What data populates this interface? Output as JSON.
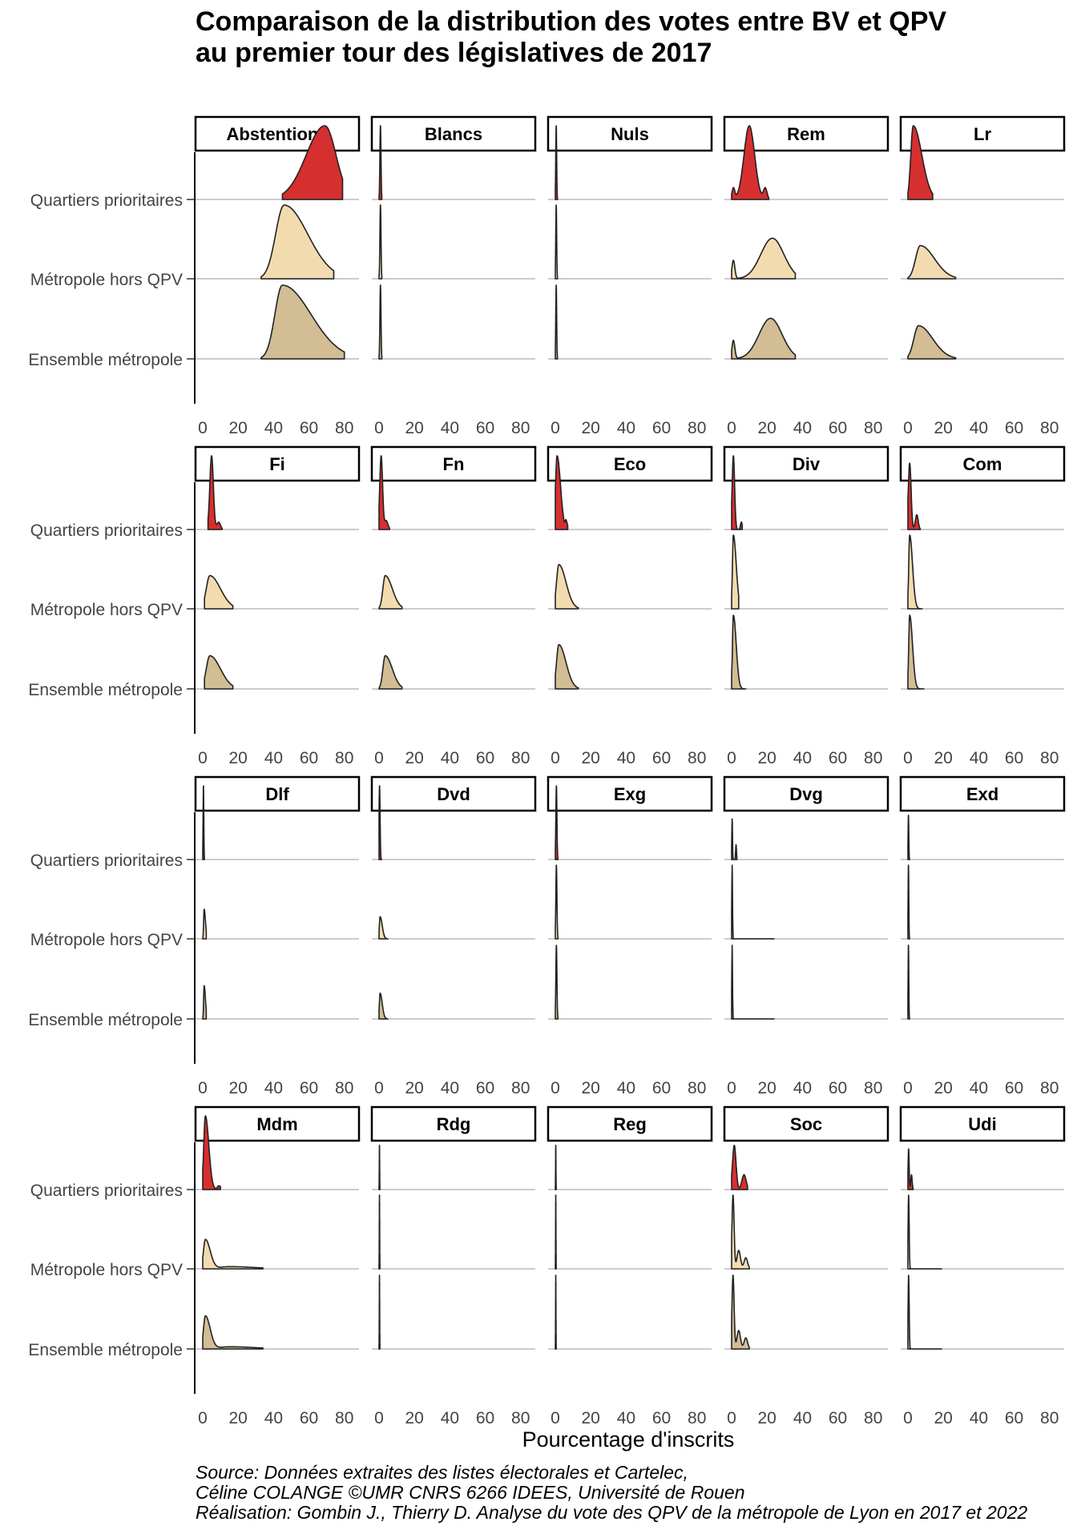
{
  "chart_data": {
    "type": "ridgeline",
    "title_lines": [
      "Comparaison de la distribution des votes entre BV et QPV",
      "au premier tour des législatives de 2017"
    ],
    "xlabel": "Pourcentage d'inscrits",
    "x_ticks": [
      "0",
      "20",
      "40",
      "60",
      "80"
    ],
    "xlim": [
      0,
      85
    ],
    "y_categories": [
      "Quartiers prioritaires",
      "Métropole hors QPV",
      "Ensemble métropole"
    ],
    "colors": {
      "Quartiers prioritaires": "#d62f2f",
      "Métropole hors QPV": "#f2dcaf",
      "Ensemble métropole": "#d2bd94",
      "gridline": "#cccccc",
      "strip_border": "#000000"
    },
    "panels": [
      {
        "name": "Abstentions",
        "series": [
          {
            "range": [
              45,
              79
            ],
            "peaks": [
              [
                69,
                7.5,
                1.0
              ]
            ],
            "skew": -0.4
          },
          {
            "range": [
              33,
              74
            ],
            "peaks": [
              [
                46,
                7,
                1.0
              ]
            ],
            "skew": 0.9
          },
          {
            "range": [
              33,
              80
            ],
            "peaks": [
              [
                45,
                7,
                1.0
              ]
            ],
            "skew": 1.3
          }
        ]
      },
      {
        "name": "Blancs",
        "series": [
          {
            "range": [
              0,
              1.6
            ],
            "peaks": [
              [
                0.8,
                0.3,
                1.0
              ]
            ],
            "skew": 0
          },
          {
            "range": [
              0,
              1.6
            ],
            "peaks": [
              [
                0.8,
                0.3,
                1.0
              ]
            ],
            "skew": 0
          },
          {
            "range": [
              0,
              1.6
            ],
            "peaks": [
              [
                0.8,
                0.3,
                1.0
              ]
            ],
            "skew": 0
          }
        ]
      },
      {
        "name": "Nuls",
        "series": [
          {
            "range": [
              0,
              1.2
            ],
            "peaks": [
              [
                0.5,
                0.25,
                1.0
              ]
            ],
            "skew": 0
          },
          {
            "range": [
              0,
              1.2
            ],
            "peaks": [
              [
                0.5,
                0.25,
                1.0
              ]
            ],
            "skew": 0
          },
          {
            "range": [
              0,
              1.2
            ],
            "peaks": [
              [
                0.5,
                0.25,
                1.0
              ]
            ],
            "skew": 0
          }
        ]
      },
      {
        "name": "Rem",
        "series": [
          {
            "range": [
              0,
              21
            ],
            "peaks": [
              [
                10,
                3,
                1.0
              ],
              [
                1,
                0.8,
                0.15
              ],
              [
                19,
                1,
                0.15
              ]
            ],
            "skew": 0
          },
          {
            "range": [
              0,
              36
            ],
            "peaks": [
              [
                23,
                6.5,
                0.55
              ],
              [
                1,
                0.8,
                0.25
              ]
            ],
            "skew": 0
          },
          {
            "range": [
              0,
              36
            ],
            "peaks": [
              [
                22,
                6.5,
                0.55
              ],
              [
                1,
                0.8,
                0.25
              ]
            ],
            "skew": 0
          }
        ]
      },
      {
        "name": "Lr",
        "series": [
          {
            "range": [
              0,
              14
            ],
            "peaks": [
              [
                3,
                2.2,
                1.0
              ]
            ],
            "skew": 1.2
          },
          {
            "range": [
              0,
              27
            ],
            "peaks": [
              [
                7,
                4,
                0.45
              ]
            ],
            "skew": 1.0
          },
          {
            "range": [
              0,
              27
            ],
            "peaks": [
              [
                6,
                4,
                0.45
              ]
            ],
            "skew": 1.0
          }
        ]
      },
      {
        "name": "Fi",
        "series": [
          {
            "range": [
              3,
              11
            ],
            "peaks": [
              [
                5,
                1,
                1.0
              ],
              [
                9,
                1,
                0.1
              ]
            ],
            "skew": 0
          },
          {
            "range": [
              1,
              17
            ],
            "peaks": [
              [
                4,
                3,
                0.45
              ]
            ],
            "skew": 1.0
          },
          {
            "range": [
              1,
              17
            ],
            "peaks": [
              [
                4,
                3,
                0.45
              ]
            ],
            "skew": 1.0
          }
        ]
      },
      {
        "name": "Fn",
        "series": [
          {
            "range": [
              0,
              6
            ],
            "peaks": [
              [
                1.2,
                0.8,
                1.0
              ],
              [
                4,
                1,
                0.12
              ]
            ],
            "skew": 0
          },
          {
            "range": [
              0,
              13
            ],
            "peaks": [
              [
                3.5,
                2,
                0.45
              ]
            ],
            "skew": 1.0
          },
          {
            "range": [
              0,
              13
            ],
            "peaks": [
              [
                3.5,
                2,
                0.45
              ]
            ],
            "skew": 1.0
          }
        ]
      },
      {
        "name": "Eco",
        "series": [
          {
            "range": [
              0,
              7
            ],
            "peaks": [
              [
                1,
                1.2,
                1.0
              ],
              [
                6,
                0.5,
                0.1
              ]
            ],
            "skew": 0.6
          },
          {
            "range": [
              0,
              13
            ],
            "peaks": [
              [
                2,
                2,
                0.6
              ]
            ],
            "skew": 1.0
          },
          {
            "range": [
              0,
              13
            ],
            "peaks": [
              [
                2,
                2,
                0.6
              ]
            ],
            "skew": 1.0
          }
        ]
      },
      {
        "name": "Div",
        "series": [
          {
            "range": [
              0,
              6
            ],
            "peaks": [
              [
                1,
                0.7,
                1.0
              ],
              [
                5.5,
                0.5,
                0.1
              ]
            ],
            "skew": 0
          },
          {
            "range": [
              0,
              4
            ],
            "peaks": [
              [
                1,
                0.8,
                1.0
              ]
            ],
            "skew": 1.0
          },
          {
            "range": [
              0,
              8
            ],
            "peaks": [
              [
                1,
                0.8,
                1.0
              ]
            ],
            "skew": 1.0
          }
        ]
      },
      {
        "name": "Com",
        "series": [
          {
            "range": [
              0,
              7
            ],
            "peaks": [
              [
                1,
                0.8,
                0.9
              ],
              [
                5,
                0.8,
                0.2
              ]
            ],
            "skew": 0
          },
          {
            "range": [
              0,
              8
            ],
            "peaks": [
              [
                1,
                0.8,
                1.0
              ]
            ],
            "skew": 1.0
          },
          {
            "range": [
              0,
              9
            ],
            "peaks": [
              [
                1,
                0.8,
                1.0
              ]
            ],
            "skew": 1.0
          }
        ]
      },
      {
        "name": "Dlf",
        "series": [
          {
            "range": [
              0,
              1
            ],
            "peaks": [
              [
                0.4,
                0.2,
                1.0
              ]
            ],
            "skew": 0
          },
          {
            "range": [
              0,
              2
            ],
            "peaks": [
              [
                0.8,
                0.4,
                0.4
              ]
            ],
            "skew": 0.8
          },
          {
            "range": [
              0,
              2
            ],
            "peaks": [
              [
                0.8,
                0.4,
                0.45
              ]
            ],
            "skew": 0.8
          }
        ]
      },
      {
        "name": "Dvd",
        "series": [
          {
            "range": [
              0,
              1.5
            ],
            "peaks": [
              [
                0.3,
                0.3,
                1.0
              ]
            ],
            "skew": 0
          },
          {
            "range": [
              0,
              5
            ],
            "peaks": [
              [
                0.6,
                0.6,
                0.3
              ]
            ],
            "skew": 1.0
          },
          {
            "range": [
              0,
              5
            ],
            "peaks": [
              [
                0.6,
                0.6,
                0.35
              ]
            ],
            "skew": 1.0
          }
        ]
      },
      {
        "name": "Exg",
        "series": [
          {
            "range": [
              0,
              1.5
            ],
            "peaks": [
              [
                0.6,
                0.3,
                1.0
              ]
            ],
            "skew": 0
          },
          {
            "range": [
              0,
              1.5
            ],
            "peaks": [
              [
                0.6,
                0.3,
                1.0
              ]
            ],
            "skew": 0
          },
          {
            "range": [
              0,
              1.5
            ],
            "peaks": [
              [
                0.6,
                0.3,
                1.0
              ]
            ],
            "skew": 0
          }
        ]
      },
      {
        "name": "Dvg",
        "series": [
          {
            "range": [
              0,
              3
            ],
            "peaks": [
              [
                0.3,
                0.2,
                0.55
              ],
              [
                2.5,
                0.25,
                0.2
              ]
            ],
            "skew": 0
          },
          {
            "range": [
              0,
              24
            ],
            "peaks": [
              [
                0.3,
                0.2,
                1.0
              ]
            ],
            "skew": 0
          },
          {
            "range": [
              0,
              24
            ],
            "peaks": [
              [
                0.3,
                0.2,
                1.0
              ]
            ],
            "skew": 0
          }
        ]
      },
      {
        "name": "Exd",
        "series": [
          {
            "range": [
              0,
              1
            ],
            "peaks": [
              [
                0.3,
                0.2,
                0.6
              ]
            ],
            "skew": 0
          },
          {
            "range": [
              0,
              1
            ],
            "peaks": [
              [
                0.3,
                0.2,
                1.0
              ]
            ],
            "skew": 0
          },
          {
            "range": [
              0,
              1
            ],
            "peaks": [
              [
                0.3,
                0.2,
                1.0
              ]
            ],
            "skew": 0
          }
        ]
      },
      {
        "name": "Mdm",
        "series": [
          {
            "range": [
              0,
              10
            ],
            "peaks": [
              [
                1.5,
                1.2,
                1.0
              ],
              [
                9,
                1,
                0.05
              ]
            ],
            "skew": 0.6
          },
          {
            "range": [
              0,
              34
            ],
            "peaks": [
              [
                1.5,
                1.5,
                0.4
              ],
              [
                15,
                8,
                0.03
              ]
            ],
            "skew": 0.8
          },
          {
            "range": [
              0,
              34
            ],
            "peaks": [
              [
                1.5,
                1.5,
                0.45
              ],
              [
                15,
                8,
                0.03
              ]
            ],
            "skew": 0.8
          }
        ]
      },
      {
        "name": "Rdg",
        "series": [
          {
            "range": [
              0,
              0.5
            ],
            "peaks": [
              [
                0.25,
                0.1,
                0.6
              ]
            ],
            "skew": 0
          },
          {
            "range": [
              0,
              0.5
            ],
            "peaks": [
              [
                0.25,
                0.1,
                1.0
              ]
            ],
            "skew": 0
          },
          {
            "range": [
              0,
              0.5
            ],
            "peaks": [
              [
                0.25,
                0.1,
                1.0
              ]
            ],
            "skew": 0
          }
        ]
      },
      {
        "name": "Reg",
        "series": [
          {
            "range": [
              0,
              0.5
            ],
            "peaks": [
              [
                0.25,
                0.1,
                0.6
              ]
            ],
            "skew": 0
          },
          {
            "range": [
              0,
              0.5
            ],
            "peaks": [
              [
                0.25,
                0.1,
                1.0
              ]
            ],
            "skew": 0
          },
          {
            "range": [
              0,
              0.5
            ],
            "peaks": [
              [
                0.25,
                0.1,
                1.0
              ]
            ],
            "skew": 0
          }
        ]
      },
      {
        "name": "Soc",
        "series": [
          {
            "range": [
              0,
              9
            ],
            "peaks": [
              [
                1.5,
                1,
                0.6
              ],
              [
                7,
                1.2,
                0.2
              ]
            ],
            "skew": 0
          },
          {
            "range": [
              0,
              10
            ],
            "peaks": [
              [
                0.8,
                0.6,
                1.0
              ],
              [
                4,
                1,
                0.25
              ],
              [
                8,
                1,
                0.15
              ]
            ],
            "skew": 0
          },
          {
            "range": [
              0,
              10
            ],
            "peaks": [
              [
                0.8,
                0.6,
                1.0
              ],
              [
                4,
                1,
                0.25
              ],
              [
                8,
                1,
                0.15
              ]
            ],
            "skew": 0
          }
        ]
      },
      {
        "name": "Udi",
        "series": [
          {
            "range": [
              0,
              3
            ],
            "peaks": [
              [
                0.4,
                0.3,
                0.55
              ],
              [
                2,
                0.4,
                0.2
              ]
            ],
            "skew": 0
          },
          {
            "range": [
              0,
              19
            ],
            "peaks": [
              [
                0.4,
                0.3,
                1.0
              ]
            ],
            "skew": 0
          },
          {
            "range": [
              0,
              19
            ],
            "peaks": [
              [
                0.4,
                0.3,
                1.0
              ]
            ],
            "skew": 0
          }
        ]
      }
    ]
  },
  "caption_lines": [
    "Source: Données extraites des listes électorales et Cartelec,",
    "Céline COLANGE ©UMR CNRS 6266 IDEES, Université de Rouen",
    "Réalisation: Gombin J., Thierry D. Analyse du vote des QPV de la métropole de Lyon en 2017 et 2022"
  ]
}
